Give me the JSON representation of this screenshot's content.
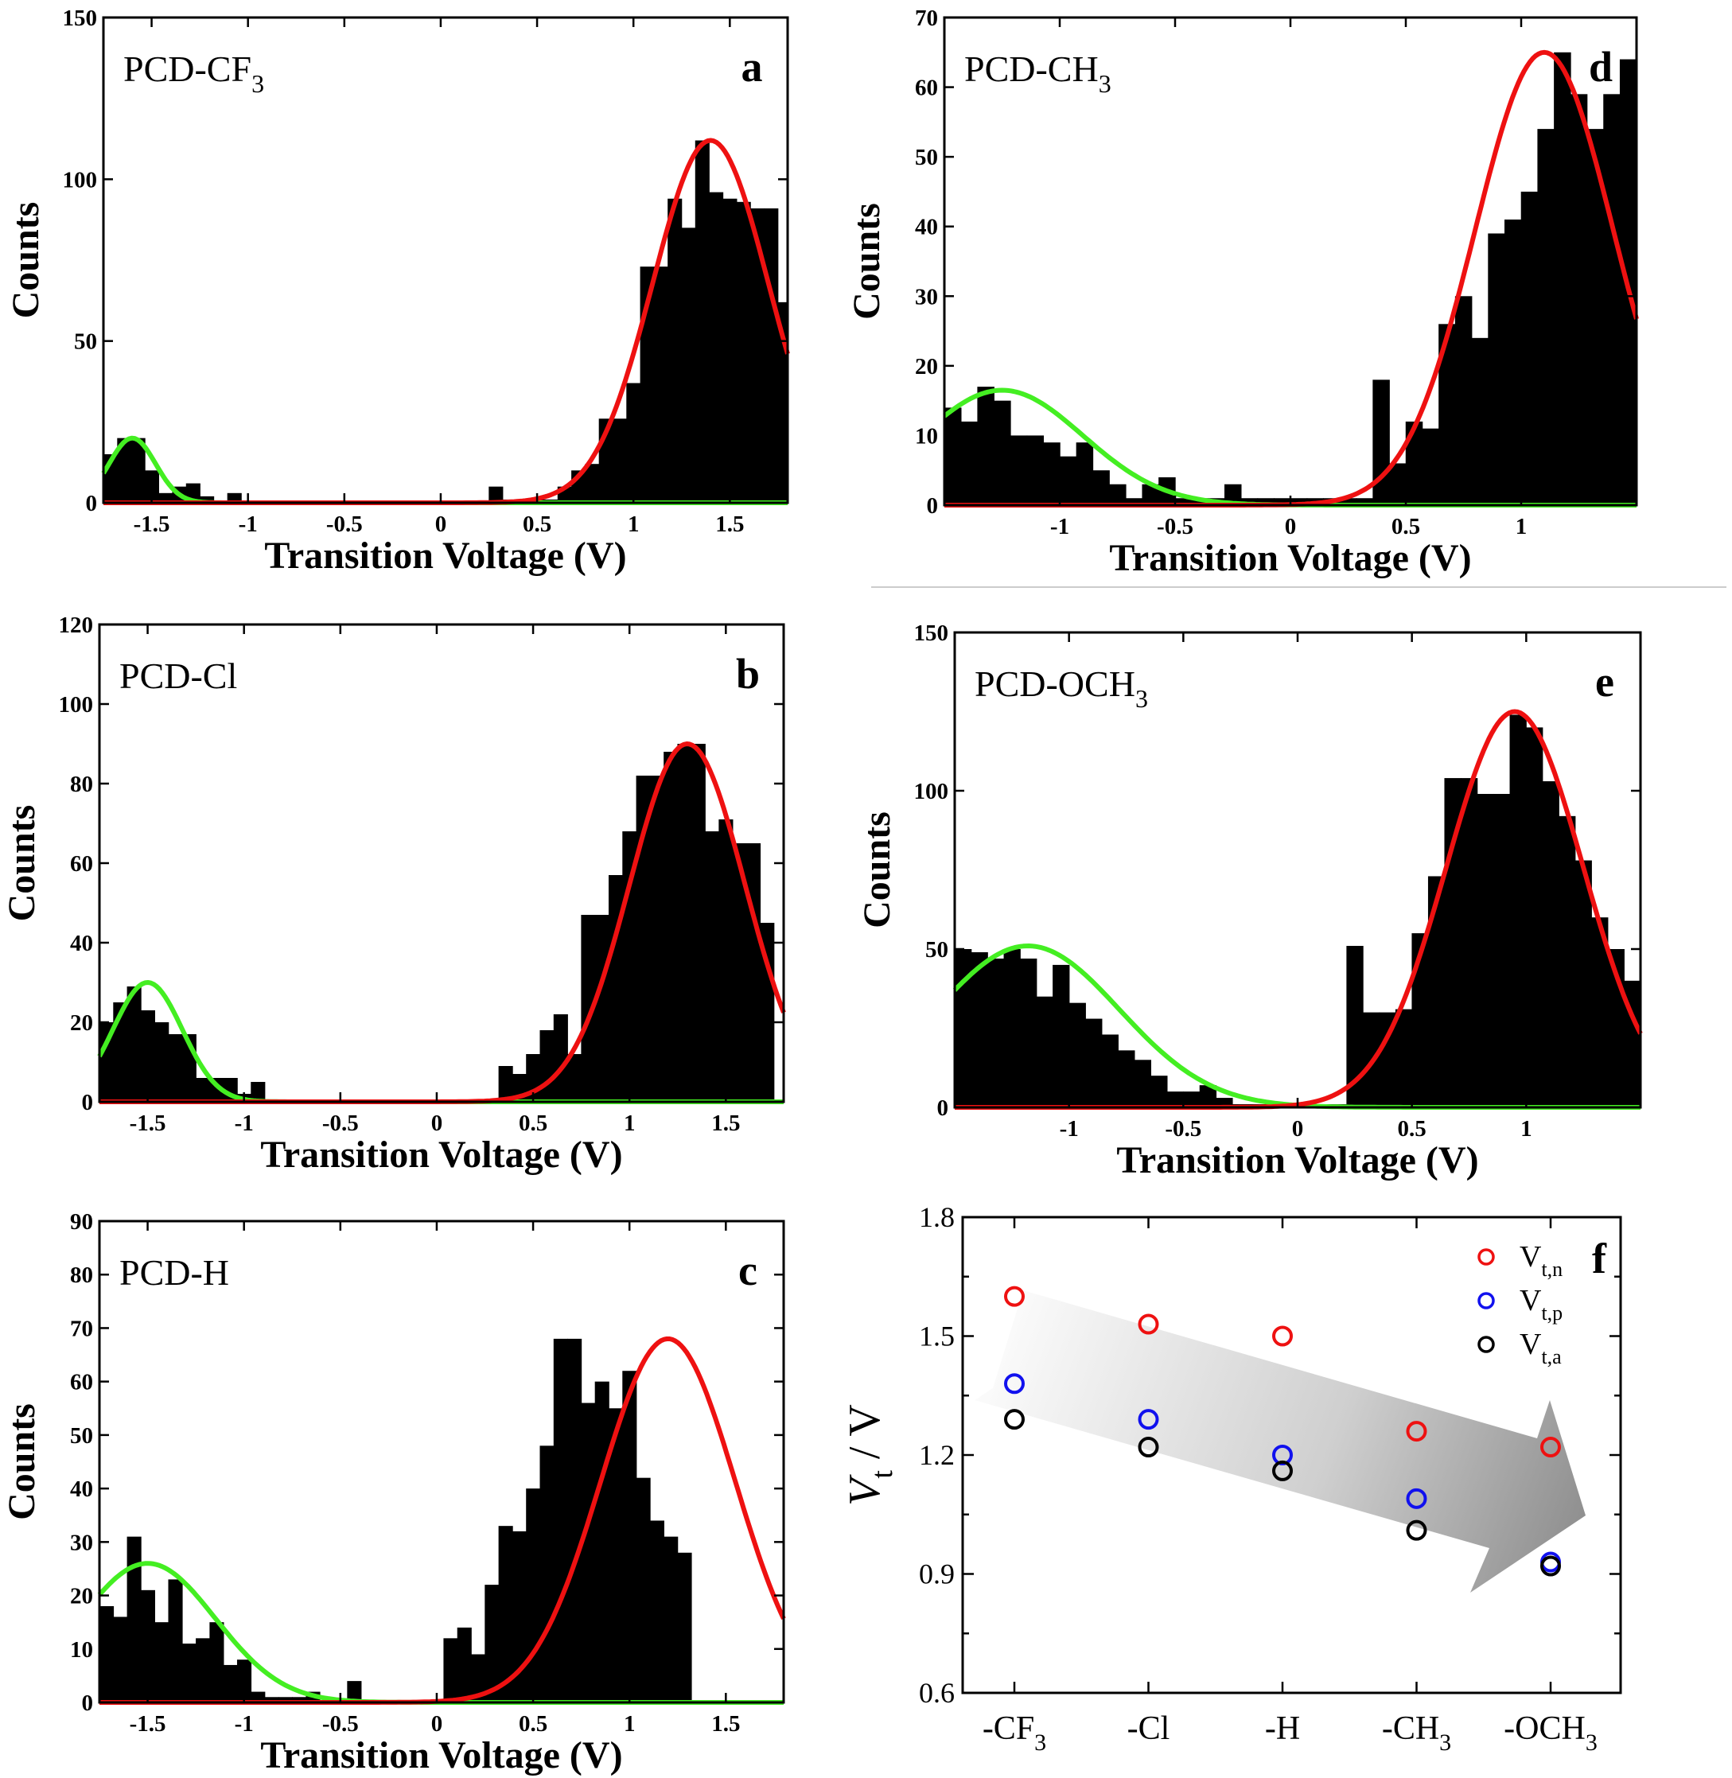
{
  "chart_data": [
    {
      "id": "a",
      "type": "bar",
      "panel_label": "a",
      "molecule": "PCD-CF",
      "molecule_sub": "3",
      "xlabel": "Transition Voltage (V)",
      "ylabel": "Counts",
      "xlim": [
        -1.75,
        1.8
      ],
      "ylim": [
        0,
        150
      ],
      "xticks": [
        -1.5,
        -1,
        -0.5,
        0,
        0.5,
        1,
        1.5
      ],
      "xtick_labels": [
        "-1.5",
        "-1",
        "-0.5",
        "0",
        "0.5",
        "1",
        "1.5"
      ],
      "yticks": [
        0,
        50,
        100,
        150
      ],
      "ytick_labels": [
        "0",
        "50",
        "100",
        "150"
      ],
      "bin_start": -1.75,
      "bin_width": 0.0714,
      "counts": [
        15,
        20,
        20,
        10,
        3,
        5,
        6,
        2,
        0,
        3,
        0,
        0,
        0,
        0,
        0,
        0,
        0,
        0,
        0,
        0,
        0,
        0,
        0,
        0,
        0,
        0,
        0,
        0,
        0,
        0,
        0,
        0,
        0,
        0,
        0,
        0,
        0,
        0,
        0,
        0,
        0,
        0,
        0,
        0,
        0,
        0,
        0,
        0,
        0,
        0,
        0
      ],
      "counts_right": {
        "start_bin": 28,
        "values": [
          5,
          1,
          1,
          1,
          1,
          5,
          10,
          12,
          26,
          26,
          37,
          73,
          73,
          94,
          85,
          112,
          96,
          94,
          93,
          91,
          91,
          62,
          0
        ]
      },
      "fits": [
        {
          "name": "green",
          "color": "#44ee22",
          "amplitude": 20,
          "center": -1.6,
          "sigma": 0.12
        },
        {
          "name": "red",
          "color": "#ee1111",
          "amplitude": 112,
          "center": 1.4,
          "sigma": 0.3
        }
      ]
    },
    {
      "id": "b",
      "type": "bar",
      "panel_label": "b",
      "molecule": "PCD-Cl",
      "molecule_sub": "",
      "xlabel": "Transition Voltage (V)",
      "ylabel": "Counts",
      "xlim": [
        -1.75,
        1.8
      ],
      "ylim": [
        0,
        120
      ],
      "xticks": [
        -1.5,
        -1,
        -0.5,
        0,
        0.5,
        1,
        1.5
      ],
      "xtick_labels": [
        "-1.5",
        "-1",
        "-0.5",
        "0",
        "0.5",
        "1",
        "1.5"
      ],
      "yticks": [
        0,
        20,
        40,
        60,
        80,
        100,
        120
      ],
      "ytick_labels": [
        "0",
        "20",
        "40",
        "60",
        "80",
        "100",
        "120"
      ],
      "bin_start": -1.75,
      "bin_width": 0.0714,
      "counts": [
        20,
        25,
        29,
        23,
        20,
        17,
        17,
        6,
        6,
        6,
        2,
        5,
        0,
        0,
        0,
        0,
        0,
        0,
        0,
        0,
        0,
        0,
        0,
        0,
        0,
        0,
        0,
        0,
        0,
        9,
        7,
        12,
        18,
        22,
        12,
        47,
        47,
        57,
        68,
        82,
        82,
        88,
        90,
        90,
        68,
        71,
        65,
        65,
        45,
        0,
        0
      ],
      "fits": [
        {
          "name": "green",
          "color": "#44ee22",
          "amplitude": 30,
          "center": -1.5,
          "sigma": 0.18
        },
        {
          "name": "red",
          "color": "#ee1111",
          "amplitude": 90,
          "center": 1.3,
          "sigma": 0.3
        }
      ]
    },
    {
      "id": "c",
      "type": "bar",
      "panel_label": "c",
      "molecule": "PCD-H",
      "molecule_sub": "",
      "xlabel": "Transition Voltage (V)",
      "ylabel": "Counts",
      "xlim": [
        -1.75,
        1.8
      ],
      "ylim": [
        0,
        90
      ],
      "xticks": [
        -1.5,
        -1,
        -0.5,
        0,
        0.5,
        1,
        1.5
      ],
      "xtick_labels": [
        "-1.5",
        "-1",
        "-0.5",
        "0",
        "0.5",
        "1",
        "1.5"
      ],
      "yticks": [
        0,
        10,
        20,
        30,
        40,
        50,
        60,
        70,
        80,
        90
      ],
      "ytick_labels": [
        "0",
        "10",
        "20",
        "30",
        "40",
        "50",
        "60",
        "70",
        "80",
        "90"
      ],
      "bin_start": -1.75,
      "bin_width": 0.0714,
      "counts": [
        18,
        16,
        31,
        21,
        15,
        23,
        11,
        12,
        15,
        7,
        8,
        2,
        1,
        1,
        1,
        2,
        0,
        0,
        4,
        0,
        0,
        0,
        0,
        0,
        0,
        12,
        14,
        9,
        22,
        33,
        32,
        40,
        48,
        68,
        68,
        56,
        60,
        55,
        62,
        42,
        34,
        31,
        28,
        0,
        0,
        0,
        0,
        0,
        0,
        0,
        0
      ],
      "fits": [
        {
          "name": "green",
          "color": "#44ee22",
          "amplitude": 26,
          "center": -1.5,
          "sigma": 0.35
        },
        {
          "name": "red",
          "color": "#ee1111",
          "amplitude": 68,
          "center": 1.2,
          "sigma": 0.35
        }
      ]
    },
    {
      "id": "d",
      "type": "bar",
      "panel_label": "d",
      "molecule": "PCD-CH",
      "molecule_sub": "3",
      "xlabel": "Transition Voltage (V)",
      "ylabel": "Counts",
      "xlim": [
        -1.5,
        1.5
      ],
      "ylim": [
        0,
        70
      ],
      "xticks": [
        -1,
        -0.5,
        0,
        0.5,
        1
      ],
      "xtick_labels": [
        "-1",
        "-0.5",
        "0",
        "0.5",
        "1"
      ],
      "yticks": [
        0,
        10,
        20,
        30,
        40,
        50,
        60,
        70
      ],
      "ytick_labels": [
        "0",
        "10",
        "20",
        "30",
        "40",
        "50",
        "60",
        "70"
      ],
      "bin_start": -1.5,
      "bin_width": 0.0714,
      "counts": [
        14,
        12,
        17,
        15,
        10,
        10,
        9,
        7,
        9,
        5,
        3,
        1,
        3,
        4,
        1,
        1,
        1,
        3,
        1,
        1,
        1,
        1,
        1,
        1,
        1,
        1,
        18,
        6,
        12,
        11,
        26,
        30,
        24,
        39,
        41,
        45,
        54,
        65,
        59,
        54,
        59,
        64,
        45,
        43,
        33,
        0
      ],
      "fits": [
        {
          "name": "green",
          "color": "#44ee22",
          "amplitude": 16.5,
          "center": -1.25,
          "sigma": 0.35
        },
        {
          "name": "red",
          "color": "#ee1111",
          "amplitude": 65,
          "center": 1.1,
          "sigma": 0.3
        }
      ]
    },
    {
      "id": "e",
      "type": "bar",
      "panel_label": "e",
      "molecule": "PCD-OCH",
      "molecule_sub": "3",
      "xlabel": "Transition Voltage (V)",
      "ylabel": "Counts",
      "xlim": [
        -1.5,
        1.5
      ],
      "ylim": [
        0,
        150
      ],
      "xticks": [
        -1,
        -0.5,
        0,
        0.5,
        1
      ],
      "xtick_labels": [
        "-1",
        "-0.5",
        "0",
        "0.5",
        "1"
      ],
      "yticks": [
        0,
        50,
        100,
        150
      ],
      "ytick_labels": [
        "0",
        "50",
        "100",
        "150"
      ],
      "bin_start": -1.5,
      "bin_width": 0.0714,
      "counts": [
        50,
        49,
        47,
        50,
        47,
        35,
        45,
        33,
        28,
        23,
        18,
        15,
        10,
        5,
        5,
        7,
        3,
        1,
        1,
        1,
        1,
        1,
        1,
        1,
        51,
        30,
        30,
        31,
        55,
        73,
        104,
        104,
        99,
        99,
        124,
        120,
        103,
        92,
        78,
        60,
        50,
        40,
        0
      ],
      "fits": [
        {
          "name": "green",
          "color": "#44ee22",
          "amplitude": 51,
          "center": -1.18,
          "sigma": 0.4
        },
        {
          "name": "red",
          "color": "#ee1111",
          "amplitude": 125,
          "center": 0.95,
          "sigma": 0.3
        }
      ]
    },
    {
      "id": "f",
      "type": "scatter",
      "panel_label": "f",
      "categories": [
        "-CF",
        "-Cl",
        "-H",
        "-CH",
        "-OCH"
      ],
      "category_subs": [
        "3",
        "",
        "",
        "3",
        "3"
      ],
      "ylabel_main": "V",
      "ylabel_sub": "t",
      "ylabel_rest": " / V",
      "ylim": [
        0.6,
        1.8
      ],
      "yticks": [
        0.6,
        0.9,
        1.2,
        1.5,
        1.8
      ],
      "ytick_labels": [
        "0.6",
        "0.9",
        "1.2",
        "1.5",
        "1.8"
      ],
      "series": [
        {
          "name": "V",
          "sub": "t,n",
          "color": "#ee1111",
          "values": [
            1.6,
            1.53,
            1.5,
            1.26,
            1.22
          ]
        },
        {
          "name": "V",
          "sub": "t,p",
          "color": "#1111ee",
          "values": [
            1.38,
            1.29,
            1.2,
            1.09,
            0.93
          ]
        },
        {
          "name": "V",
          "sub": "t,a",
          "color": "#000000",
          "values": [
            1.29,
            1.22,
            1.16,
            1.01,
            0.92
          ]
        }
      ]
    }
  ]
}
